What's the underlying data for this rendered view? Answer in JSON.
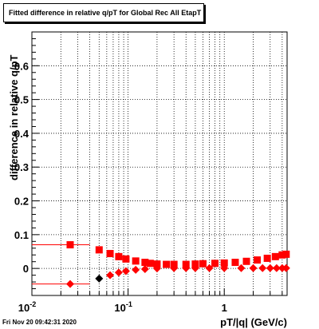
{
  "chart_data": {
    "type": "scatter",
    "title": "Fitted difference in relative q/pT for Global Rec All EtapT",
    "xlabel": "pT/|q| (GeV/c)",
    "ylabel": "difference in relative q/pT",
    "xscale": "log",
    "xlim": [
      0.01,
      4.5
    ],
    "ylim": [
      -0.08,
      0.7
    ],
    "grid": true,
    "x_ticks": [
      {
        "value": 0.01,
        "label": "10",
        "exp": "-2"
      },
      {
        "value": 0.1,
        "label": "10",
        "exp": "-1"
      },
      {
        "value": 1,
        "label": "1",
        "exp": ""
      }
    ],
    "y_ticks": [
      {
        "value": 0,
        "label": "0"
      },
      {
        "value": 0.1,
        "label": "0.1"
      },
      {
        "value": 0.2,
        "label": "0.2"
      },
      {
        "value": 0.3,
        "label": "0.3"
      },
      {
        "value": 0.4,
        "label": "0.4"
      },
      {
        "value": 0.5,
        "label": "0.5"
      },
      {
        "value": 0.6,
        "label": "0.6"
      }
    ],
    "series": [
      {
        "marker": "square",
        "color": "#ff0000",
        "points": [
          {
            "x": 0.025,
            "y": 0.07,
            "xlo": 0.01,
            "xhi": 0.04
          },
          {
            "x": 0.05,
            "y": 0.055
          },
          {
            "x": 0.065,
            "y": 0.044
          },
          {
            "x": 0.08,
            "y": 0.035
          },
          {
            "x": 0.095,
            "y": 0.028
          },
          {
            "x": 0.12,
            "y": 0.022
          },
          {
            "x": 0.15,
            "y": 0.018
          },
          {
            "x": 0.17,
            "y": 0.015
          },
          {
            "x": 0.2,
            "y": 0.013
          },
          {
            "x": 0.25,
            "y": 0.012
          },
          {
            "x": 0.3,
            "y": 0.012
          },
          {
            "x": 0.4,
            "y": 0.012
          },
          {
            "x": 0.5,
            "y": 0.013
          },
          {
            "x": 0.6,
            "y": 0.014
          },
          {
            "x": 0.8,
            "y": 0.015
          },
          {
            "x": 1.0,
            "y": 0.016
          },
          {
            "x": 1.3,
            "y": 0.018
          },
          {
            "x": 1.7,
            "y": 0.021
          },
          {
            "x": 2.2,
            "y": 0.025
          },
          {
            "x": 2.8,
            "y": 0.03
          },
          {
            "x": 3.4,
            "y": 0.035
          },
          {
            "x": 4.0,
            "y": 0.04
          },
          {
            "x": 4.4,
            "y": 0.042
          }
        ]
      },
      {
        "marker": "diamond",
        "color": "#ff0000",
        "points": [
          {
            "x": 0.025,
            "y": -0.046,
            "xlo": 0.01,
            "xhi": 0.04
          },
          {
            "x": 0.05,
            "y": -0.03,
            "color": "#000000"
          },
          {
            "x": 0.065,
            "y": -0.02
          },
          {
            "x": 0.08,
            "y": -0.012
          },
          {
            "x": 0.095,
            "y": -0.008
          },
          {
            "x": 0.12,
            "y": -0.004
          },
          {
            "x": 0.15,
            "y": -0.002
          },
          {
            "x": 0.2,
            "y": 0.0
          },
          {
            "x": 0.3,
            "y": 0.001
          },
          {
            "x": 0.4,
            "y": 0.001
          },
          {
            "x": 0.5,
            "y": 0.001
          },
          {
            "x": 0.7,
            "y": 0.001
          },
          {
            "x": 1.0,
            "y": 0.001
          },
          {
            "x": 1.5,
            "y": 0.001
          },
          {
            "x": 2.0,
            "y": 0.001
          },
          {
            "x": 2.5,
            "y": 0.001
          },
          {
            "x": 3.0,
            "y": 0.001
          },
          {
            "x": 3.5,
            "y": 0.001
          },
          {
            "x": 4.0,
            "y": 0.001
          },
          {
            "x": 4.4,
            "y": 0.001
          }
        ]
      }
    ]
  },
  "timestamp": "Fri Nov 20 09:42:31 2020"
}
